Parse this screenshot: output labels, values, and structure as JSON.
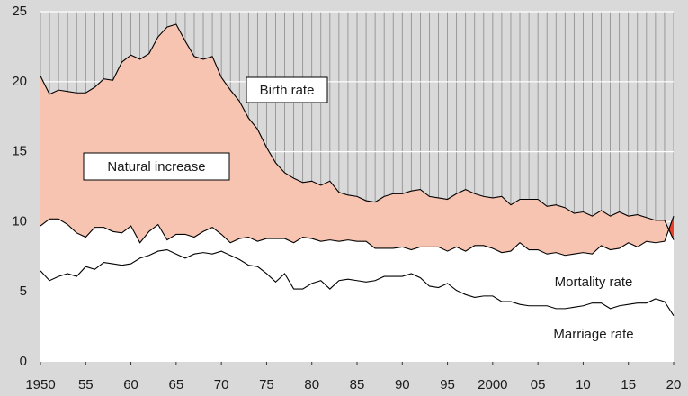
{
  "chart_data": {
    "type": "area",
    "x": [
      1950,
      1951,
      1952,
      1953,
      1954,
      1955,
      1956,
      1957,
      1958,
      1959,
      1960,
      1961,
      1962,
      1963,
      1964,
      1965,
      1966,
      1967,
      1968,
      1969,
      1970,
      1971,
      1972,
      1973,
      1974,
      1975,
      1976,
      1977,
      1978,
      1979,
      1980,
      1981,
      1982,
      1983,
      1984,
      1985,
      1986,
      1987,
      1988,
      1989,
      1990,
      1991,
      1992,
      1993,
      1994,
      1995,
      1996,
      1997,
      1998,
      1999,
      2000,
      2001,
      2002,
      2003,
      2004,
      2005,
      2006,
      2007,
      2008,
      2009,
      2010,
      2011,
      2012,
      2013,
      2014,
      2015,
      2016,
      2017,
      2018,
      2019,
      2020
    ],
    "series": [
      {
        "name": "Birth rate",
        "color": "#000000",
        "values": [
          20.4,
          19.1,
          19.4,
          19.3,
          19.2,
          19.2,
          19.6,
          20.2,
          20.1,
          21.4,
          21.9,
          21.6,
          22.0,
          23.2,
          23.9,
          24.1,
          22.9,
          21.8,
          21.6,
          21.8,
          20.3,
          19.4,
          18.6,
          17.4,
          16.6,
          15.3,
          14.2,
          13.5,
          13.1,
          12.8,
          12.9,
          12.6,
          12.9,
          12.1,
          11.9,
          11.8,
          11.5,
          11.4,
          11.8,
          12.0,
          12.0,
          12.2,
          12.3,
          11.8,
          11.7,
          11.6,
          12.0,
          12.3,
          12.0,
          11.8,
          11.7,
          11.8,
          11.2,
          11.6,
          11.6,
          11.6,
          11.1,
          11.2,
          11.0,
          10.6,
          10.7,
          10.4,
          10.8,
          10.4,
          10.7,
          10.4,
          10.5,
          10.3,
          10.1,
          10.1,
          8.7
        ]
      },
      {
        "name": "Mortality rate",
        "color": "#000000",
        "values": [
          9.7,
          10.2,
          10.2,
          9.8,
          9.2,
          8.9,
          9.6,
          9.6,
          9.3,
          9.2,
          9.7,
          8.5,
          9.3,
          9.8,
          8.7,
          9.1,
          9.1,
          8.9,
          9.3,
          9.6,
          9.1,
          8.5,
          8.8,
          8.9,
          8.6,
          8.8,
          8.8,
          8.8,
          8.5,
          8.9,
          8.8,
          8.6,
          8.7,
          8.6,
          8.7,
          8.6,
          8.6,
          8.1,
          8.1,
          8.1,
          8.2,
          8.0,
          8.2,
          8.2,
          8.2,
          7.9,
          8.2,
          7.9,
          8.3,
          8.3,
          8.1,
          7.8,
          7.9,
          8.5,
          8.0,
          8.0,
          7.7,
          7.8,
          7.6,
          7.7,
          7.8,
          7.7,
          8.3,
          8.0,
          8.1,
          8.5,
          8.2,
          8.6,
          8.5,
          8.6,
          10.4
        ]
      },
      {
        "name": "Marriage rate",
        "color": "#000000",
        "values": [
          6.5,
          5.8,
          6.1,
          6.3,
          6.1,
          6.8,
          6.6,
          7.1,
          7.0,
          6.9,
          7.0,
          7.4,
          7.6,
          7.9,
          8.0,
          7.7,
          7.4,
          7.7,
          7.8,
          7.7,
          7.9,
          7.6,
          7.3,
          6.9,
          6.8,
          6.3,
          5.7,
          6.3,
          5.2,
          5.2,
          5.6,
          5.8,
          5.2,
          5.8,
          5.9,
          5.8,
          5.7,
          5.8,
          6.1,
          6.1,
          6.1,
          6.3,
          6.0,
          5.4,
          5.3,
          5.6,
          5.1,
          4.8,
          4.6,
          4.7,
          4.7,
          4.3,
          4.3,
          4.1,
          4.0,
          4.0,
          4.0,
          3.8,
          3.8,
          3.9,
          4.0,
          4.2,
          4.2,
          3.8,
          4.0,
          4.1,
          4.2,
          4.2,
          4.5,
          4.3,
          3.3
        ]
      }
    ],
    "annotations": [
      "Natural increase"
    ],
    "increase_color": "#f8c4b2",
    "decrease_color": "#e8412c",
    "background_color": "#d9d9d9",
    "xlim": [
      1950,
      2020
    ],
    "xticks": [
      1950,
      {
        "value": 1955,
        "label": "55"
      },
      {
        "value": 1960,
        "label": "60"
      },
      {
        "value": 1965,
        "label": "65"
      },
      {
        "value": 1970,
        "label": "70"
      },
      {
        "value": 1975,
        "label": "75"
      },
      {
        "value": 1980,
        "label": "80"
      },
      {
        "value": 1985,
        "label": "85"
      },
      {
        "value": 1990,
        "label": "90"
      },
      {
        "value": 1995,
        "label": "95"
      },
      2000,
      {
        "value": 2005,
        "label": "05"
      },
      {
        "value": 2010,
        "label": "10"
      },
      {
        "value": 2015,
        "label": "15"
      },
      {
        "value": 2020,
        "label": "20"
      }
    ],
    "ylim": [
      0,
      25
    ],
    "yticks": [
      0,
      5,
      10,
      15,
      20,
      25
    ],
    "grid": true
  }
}
